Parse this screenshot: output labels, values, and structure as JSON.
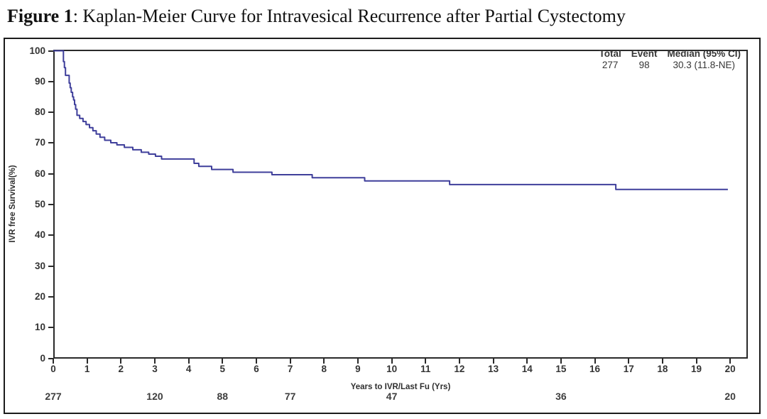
{
  "figure": {
    "label": "Figure 1",
    "title_rest": ": Kaplan-Meier Curve for Intravesical Recurrence after Partial Cystectomy"
  },
  "legend": {
    "headers": [
      "Total",
      "Event",
      "Median (95% CI)"
    ],
    "values": [
      "277",
      "98",
      "30.3 (11.8-NE)"
    ]
  },
  "chart_data": {
    "type": "line",
    "subtype": "kaplan-meier-step-curve",
    "title": "Kaplan-Meier Curve for Intravesical Recurrence after Partial Cystectomy",
    "xlabel": "Years to IVR/Last Fu (Yrs)",
    "ylabel": "IVR free Survival(%)",
    "xlim": [
      0,
      20.5
    ],
    "ylim": [
      0,
      100
    ],
    "x_ticks": [
      0,
      1,
      2,
      3,
      4,
      5,
      6,
      7,
      8,
      9,
      10,
      11,
      12,
      13,
      14,
      15,
      16,
      17,
      18,
      19,
      20
    ],
    "y_ticks": [
      0,
      10,
      20,
      30,
      40,
      50,
      60,
      70,
      80,
      90,
      100
    ],
    "grid": false,
    "legend_position": "top-right-inside",
    "line_color": "#3f3f9b",
    "summary": {
      "total": 277,
      "event": 98,
      "median": "30.3",
      "ci_95": "11.8-NE"
    },
    "series": [
      {
        "name": "IVR free survival",
        "steps": [
          [
            0,
            100
          ],
          [
            0.28,
            100
          ],
          [
            0.3,
            96.5
          ],
          [
            0.33,
            94.5
          ],
          [
            0.36,
            92
          ],
          [
            0.44,
            92
          ],
          [
            0.47,
            89.5
          ],
          [
            0.5,
            88
          ],
          [
            0.53,
            86.5
          ],
          [
            0.57,
            85
          ],
          [
            0.6,
            84
          ],
          [
            0.63,
            82.5
          ],
          [
            0.66,
            81
          ],
          [
            0.7,
            79
          ],
          [
            0.78,
            78
          ],
          [
            0.88,
            77
          ],
          [
            0.97,
            76
          ],
          [
            1.07,
            75
          ],
          [
            1.17,
            74
          ],
          [
            1.27,
            72.9
          ],
          [
            1.38,
            71.9
          ],
          [
            1.52,
            70.9
          ],
          [
            1.7,
            70.1
          ],
          [
            1.88,
            69.4
          ],
          [
            2.1,
            68.6
          ],
          [
            2.35,
            67.8
          ],
          [
            2.6,
            67.0
          ],
          [
            2.82,
            66.4
          ],
          [
            3.02,
            65.7
          ],
          [
            3.2,
            64.8
          ],
          [
            4.1,
            64.8
          ],
          [
            4.16,
            63.4
          ],
          [
            4.3,
            62.4
          ],
          [
            4.68,
            61.4
          ],
          [
            5.31,
            60.5
          ],
          [
            6.46,
            59.7
          ],
          [
            7.65,
            58.7
          ],
          [
            9.2,
            57.7
          ],
          [
            11.71,
            56.5
          ],
          [
            16.62,
            54.9
          ],
          [
            19.93,
            54.9
          ]
        ]
      }
    ],
    "at_risk": {
      "times": [
        0,
        3,
        5,
        7,
        10,
        15,
        20
      ],
      "counts": [
        277,
        120,
        88,
        77,
        47,
        36,
        20
      ]
    }
  }
}
